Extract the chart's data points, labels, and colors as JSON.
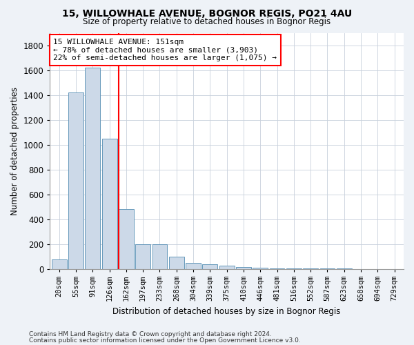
{
  "title1": "15, WILLOWHALE AVENUE, BOGNOR REGIS, PO21 4AU",
  "title2": "Size of property relative to detached houses in Bognor Regis",
  "xlabel": "Distribution of detached houses by size in Bognor Regis",
  "ylabel": "Number of detached properties",
  "categories": [
    "20sqm",
    "55sqm",
    "91sqm",
    "126sqm",
    "162sqm",
    "197sqm",
    "233sqm",
    "268sqm",
    "304sqm",
    "339sqm",
    "375sqm",
    "410sqm",
    "446sqm",
    "481sqm",
    "516sqm",
    "552sqm",
    "587sqm",
    "623sqm",
    "658sqm",
    "694sqm",
    "729sqm"
  ],
  "values": [
    75,
    1420,
    1620,
    1050,
    480,
    200,
    200,
    100,
    50,
    35,
    25,
    15,
    10,
    5,
    3,
    2,
    1,
    1,
    0,
    0,
    0
  ],
  "bar_color": "#ccd9e8",
  "bar_edge_color": "#6699bb",
  "red_line_x": 3.55,
  "annotation_title": "15 WILLOWHALE AVENUE: 151sqm",
  "annotation_line1": "← 78% of detached houses are smaller (3,903)",
  "annotation_line2": "22% of semi-detached houses are larger (1,075) →",
  "ylim": [
    0,
    1900
  ],
  "yticks": [
    0,
    200,
    400,
    600,
    800,
    1000,
    1200,
    1400,
    1600,
    1800
  ],
  "footer1": "Contains HM Land Registry data © Crown copyright and database right 2024.",
  "footer2": "Contains public sector information licensed under the Open Government Licence v3.0.",
  "bg_color": "#eef2f7",
  "plot_bg_color": "#ffffff",
  "grid_color": "#c8d0dc"
}
